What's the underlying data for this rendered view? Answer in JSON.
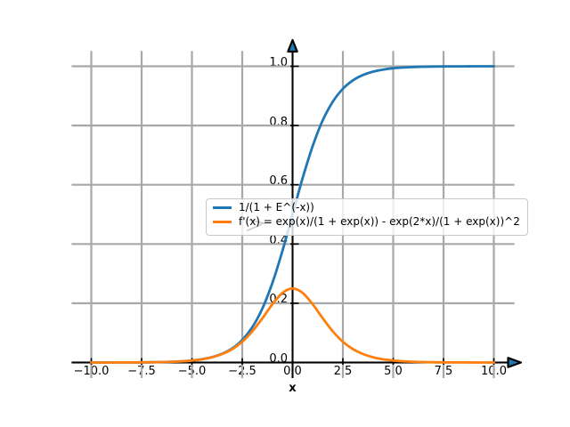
{
  "figure": {
    "background": "#ffffff"
  },
  "axes": {
    "xlabel": "x",
    "xlim": [
      -11,
      11
    ],
    "ylim": [
      -0.05,
      1.05
    ],
    "grid": true,
    "grid_color": "#a8a8a8",
    "spine_color": "#000000",
    "arrow_fill": "#1f77b4",
    "x_ticks": {
      "values": [
        -10,
        -7.5,
        -5,
        -2.5,
        0,
        2.5,
        5,
        7.5,
        10
      ],
      "labels": [
        "−10.0",
        "−7.5",
        "−5.0",
        "−2.5",
        "0.0",
        "2.5",
        "5.0",
        "7.5",
        "10.0"
      ]
    },
    "y_ticks": {
      "values": [
        0,
        0.2,
        0.4,
        0.6,
        0.8,
        1.0
      ],
      "labels": [
        "0.0",
        "0.2",
        "0.4",
        "0.6",
        "0.8",
        "1.0"
      ]
    }
  },
  "legend": {
    "position": "center",
    "background": "rgba(255,255,255,0.8)",
    "border_color": "#c8c8c8",
    "entries": [
      {
        "label": "1/(1 + E^(-x))",
        "color": "#1f77b4"
      },
      {
        "label": "f'(x) = exp(x)/(1 + exp(x)) - exp(2*x)/(1 + exp(x))^2",
        "color": "#ff7f0e"
      }
    ]
  },
  "chart_data": {
    "type": "line",
    "title": "",
    "xlabel": "x",
    "ylabel": "",
    "xlim": [
      -11,
      11
    ],
    "ylim": [
      -0.05,
      1.05
    ],
    "grid": true,
    "legend_position": "center",
    "x": [
      -10,
      -9.5,
      -9,
      -8.5,
      -8,
      -7.5,
      -7,
      -6.5,
      -6,
      -5.5,
      -5,
      -4.5,
      -4,
      -3.5,
      -3,
      -2.5,
      -2,
      -1.5,
      -1,
      -0.5,
      0,
      0.5,
      1,
      1.5,
      2,
      2.5,
      3,
      3.5,
      4,
      4.5,
      5,
      5.5,
      6,
      6.5,
      7,
      7.5,
      8,
      8.5,
      9,
      9.5,
      10
    ],
    "series": [
      {
        "name": "1/(1 + E^(-x))",
        "color": "#1f77b4",
        "values": [
          5e-05,
          7e-05,
          0.00012,
          0.0002,
          0.00034,
          0.00055,
          0.00091,
          0.0015,
          0.00247,
          0.00407,
          0.00669,
          0.01099,
          0.01799,
          0.02931,
          0.04743,
          0.07586,
          0.1192,
          0.18243,
          0.26894,
          0.37754,
          0.5,
          0.62246,
          0.73106,
          0.81757,
          0.8808,
          0.92414,
          0.95257,
          0.97069,
          0.98201,
          0.98901,
          0.99331,
          0.99593,
          0.99753,
          0.9985,
          0.99909,
          0.99945,
          0.99966,
          0.9998,
          0.99988,
          0.99993,
          0.99995
        ]
      },
      {
        "name": "f'(x) = exp(x)/(1 + exp(x)) - exp(2*x)/(1 + exp(x))^2",
        "color": "#ff7f0e",
        "values": [
          5e-05,
          7e-05,
          0.00012,
          0.0002,
          0.00033,
          0.00055,
          0.00091,
          0.0015,
          0.00247,
          0.00405,
          0.00665,
          0.01087,
          0.01766,
          0.02845,
          0.04518,
          0.0701,
          0.10499,
          0.14915,
          0.19661,
          0.235,
          0.25,
          0.235,
          0.19661,
          0.14915,
          0.10499,
          0.0701,
          0.04518,
          0.02845,
          0.01766,
          0.01087,
          0.00665,
          0.00405,
          0.00247,
          0.0015,
          0.00091,
          0.00055,
          0.00033,
          0.0002,
          0.00012,
          7e-05,
          5e-05
        ]
      }
    ]
  }
}
